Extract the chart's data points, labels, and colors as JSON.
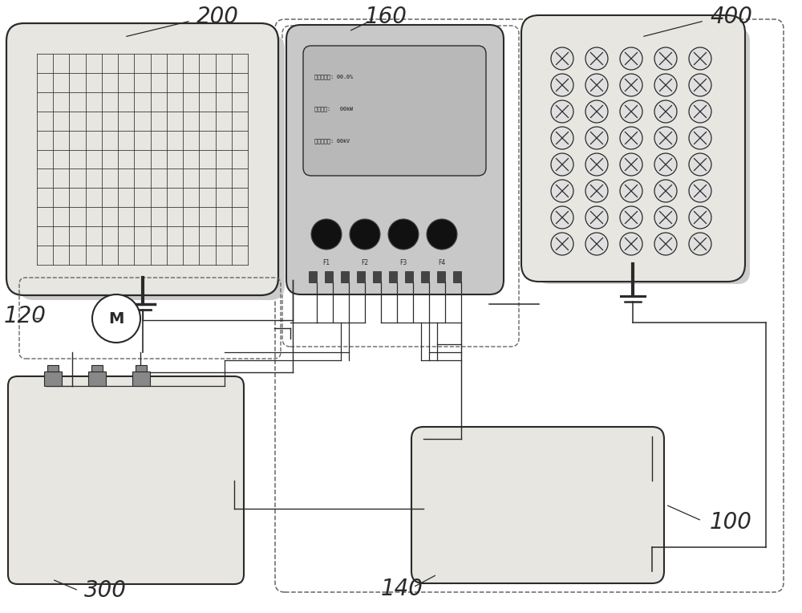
{
  "bg_color": "#ffffff",
  "line_color": "#2a2a2a",
  "shadow_color": "#aaaaaa",
  "label_100": "100",
  "label_120": "120",
  "label_140": "140",
  "label_160": "160",
  "label_200": "200",
  "label_300": "300",
  "label_400": "400",
  "display_lines": [
    "蓄电池电量: 00.0%",
    "环发电量:   00kW",
    "电池组电压: 00kV"
  ],
  "button_labels": [
    "F1",
    "F2",
    "F3",
    "F4"
  ],
  "solar_grid_rows": 11,
  "solar_grid_cols": 13,
  "led_rows": 8,
  "led_cols": 5
}
